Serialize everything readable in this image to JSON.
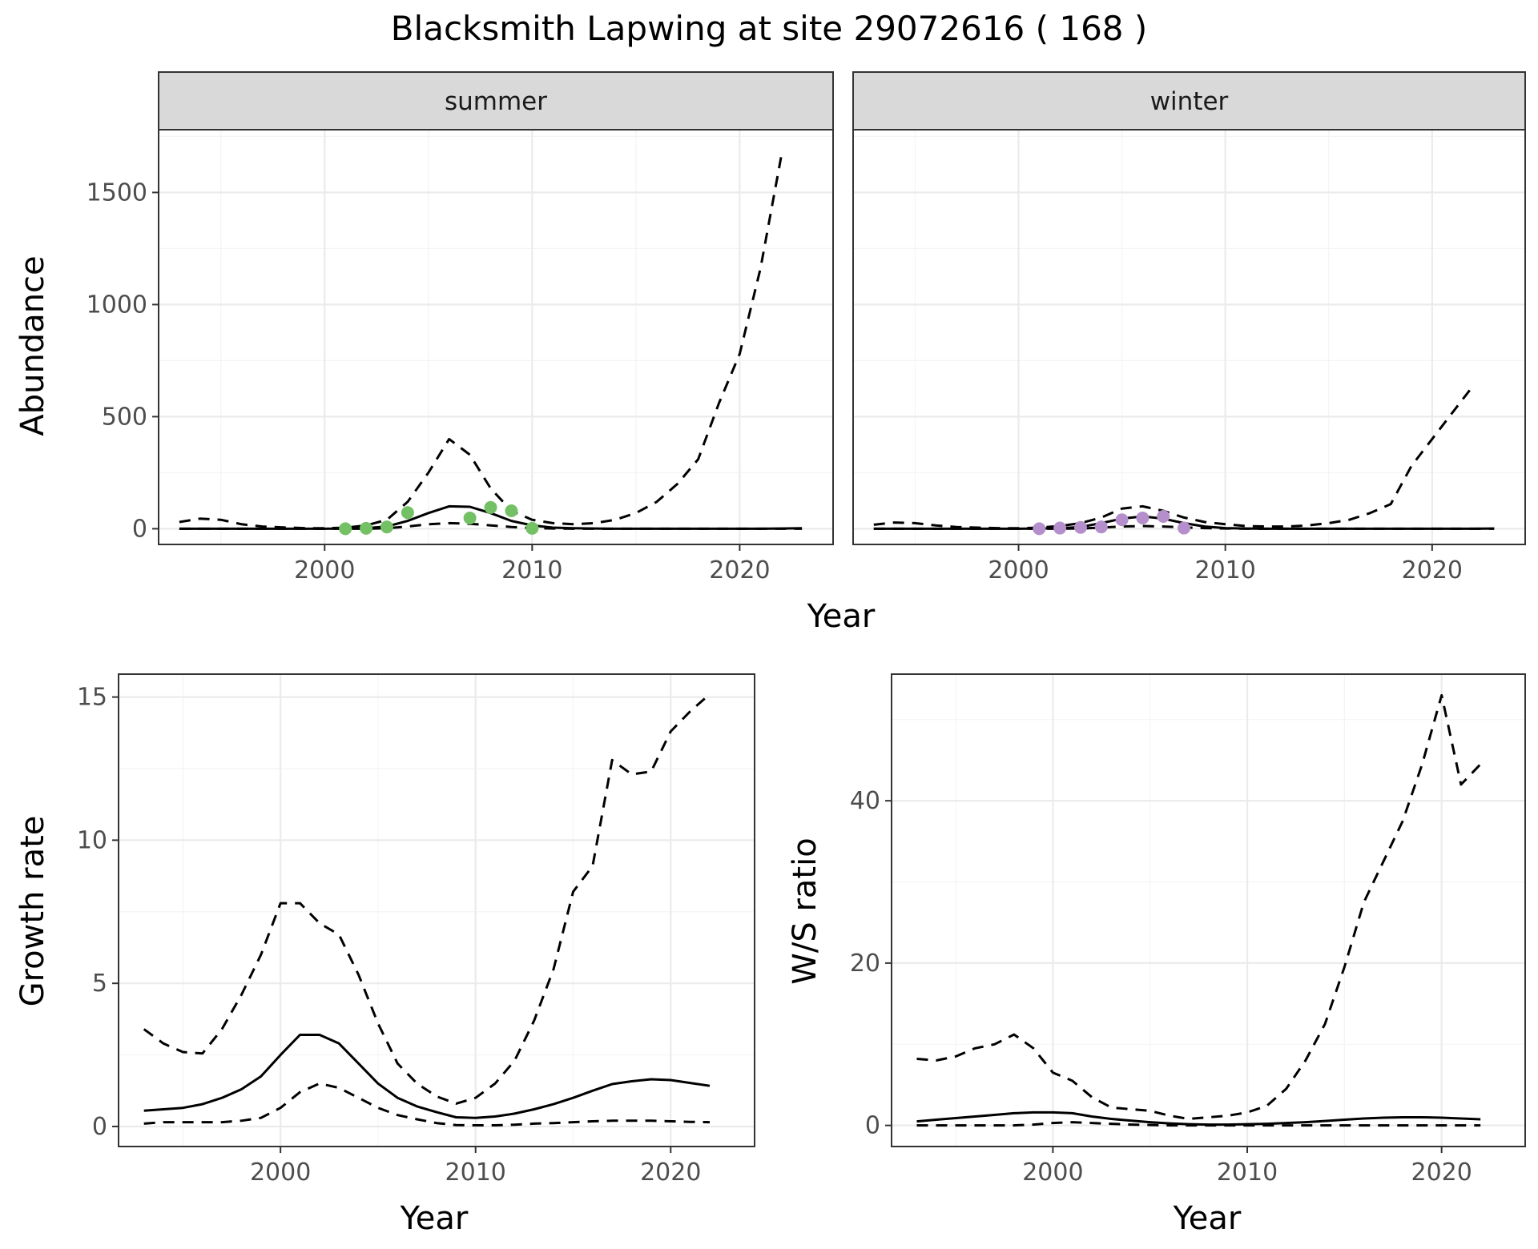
{
  "figure": {
    "title": "Blacksmith Lapwing at site 29072616 ( 168 )"
  },
  "colors": {
    "summer_points": "#74c165",
    "winter_points": "#b48fcb",
    "lines": "#000000",
    "strip_bg": "#d9d9d9"
  },
  "chart_data": [
    {
      "id": "abundance-summer",
      "type": "line",
      "facet": "summer",
      "xlabel": "Year",
      "ylabel": "Abundance",
      "xlim": [
        1992,
        2024.5
      ],
      "ylim": [
        -70,
        1780
      ],
      "xticks": [
        2000,
        2010,
        2020
      ],
      "yticks": [
        0,
        500,
        1000,
        1500
      ],
      "x": [
        1993,
        1994,
        1995,
        1996,
        1997,
        1998,
        1999,
        2000,
        2001,
        2002,
        2003,
        2004,
        2005,
        2006,
        2007,
        2008,
        2009,
        2010,
        2011,
        2012,
        2013,
        2014,
        2015,
        2016,
        2017,
        2018,
        2019,
        2020,
        2021,
        2022,
        2023
      ],
      "series": [
        {
          "name": "estimate",
          "style": "solid",
          "values": [
            0,
            0,
            0,
            0,
            0,
            0,
            0,
            0,
            1,
            3,
            10,
            35,
            70,
            100,
            98,
            70,
            35,
            15,
            5,
            2,
            1,
            0,
            0,
            0,
            0,
            0,
            0,
            0,
            0,
            1,
            2
          ]
        },
        {
          "name": "upper",
          "style": "dashed",
          "values": [
            30,
            45,
            40,
            20,
            10,
            6,
            3,
            2,
            5,
            15,
            40,
            120,
            250,
            400,
            330,
            180,
            80,
            40,
            25,
            20,
            25,
            40,
            70,
            120,
            200,
            310,
            560,
            780,
            1160,
            1660,
            null
          ]
        },
        {
          "name": "lower",
          "style": "dashed",
          "values": [
            0,
            0,
            0,
            0,
            0,
            0,
            0,
            0,
            0,
            0,
            2,
            10,
            20,
            25,
            22,
            15,
            8,
            3,
            1,
            0,
            0,
            0,
            0,
            0,
            0,
            0,
            0,
            0,
            0,
            0,
            0
          ]
        }
      ],
      "points": {
        "x": [
          2001,
          2002,
          2003,
          2004,
          2007,
          2008,
          2009,
          2010
        ],
        "y": [
          0,
          2,
          8,
          72,
          48,
          95,
          80,
          2
        ]
      }
    },
    {
      "id": "abundance-winter",
      "type": "line",
      "facet": "winter",
      "xlabel": "Year",
      "ylabel": "Abundance",
      "xlim": [
        1992,
        2024.5
      ],
      "ylim": [
        -70,
        1780
      ],
      "xticks": [
        2000,
        2010,
        2020
      ],
      "yticks": [
        0,
        500,
        1000,
        1500
      ],
      "x": [
        1993,
        1994,
        1995,
        1996,
        1997,
        1998,
        1999,
        2000,
        2001,
        2002,
        2003,
        2004,
        2005,
        2006,
        2007,
        2008,
        2009,
        2010,
        2011,
        2012,
        2013,
        2014,
        2015,
        2016,
        2017,
        2018,
        2019,
        2020,
        2021,
        2022,
        2023
      ],
      "series": [
        {
          "name": "estimate",
          "style": "solid",
          "values": [
            0,
            0,
            0,
            0,
            0,
            0,
            0,
            0,
            1,
            2,
            8,
            25,
            45,
            55,
            45,
            25,
            10,
            3,
            1,
            0,
            0,
            0,
            0,
            0,
            0,
            0,
            0,
            0,
            0,
            0,
            1
          ]
        },
        {
          "name": "upper",
          "style": "dashed",
          "values": [
            18,
            28,
            25,
            15,
            8,
            5,
            3,
            2,
            5,
            12,
            25,
            50,
            90,
            100,
            80,
            50,
            30,
            20,
            12,
            10,
            10,
            15,
            25,
            40,
            70,
            110,
            280,
            400,
            520,
            640,
            null
          ]
        },
        {
          "name": "lower",
          "style": "dashed",
          "values": [
            0,
            0,
            0,
            0,
            0,
            0,
            0,
            0,
            0,
            0,
            1,
            5,
            10,
            12,
            10,
            6,
            3,
            1,
            0,
            0,
            0,
            0,
            0,
            0,
            0,
            0,
            0,
            0,
            0,
            0,
            0
          ]
        }
      ],
      "points": {
        "x": [
          2001,
          2002,
          2003,
          2004,
          2005,
          2006,
          2007,
          2008
        ],
        "y": [
          0,
          3,
          6,
          8,
          40,
          48,
          55,
          3
        ]
      }
    },
    {
      "id": "growth-rate",
      "type": "line",
      "xlabel": "Year",
      "ylabel": "Growth rate",
      "xlim": [
        1991.7,
        2024.3
      ],
      "ylim": [
        -0.7,
        15.8
      ],
      "xticks": [
        2000,
        2010,
        2020
      ],
      "yticks": [
        0,
        5,
        10,
        15
      ],
      "x": [
        1993,
        1994,
        1995,
        1996,
        1997,
        1998,
        1999,
        2000,
        2001,
        2002,
        2003,
        2004,
        2005,
        2006,
        2007,
        2008,
        2009,
        2010,
        2011,
        2012,
        2013,
        2014,
        2015,
        2016,
        2017,
        2018,
        2019,
        2020,
        2021,
        2022
      ],
      "series": [
        {
          "name": "estimate",
          "style": "solid",
          "values": [
            0.55,
            0.6,
            0.65,
            0.78,
            1.0,
            1.3,
            1.75,
            2.5,
            3.2,
            3.2,
            2.9,
            2.2,
            1.5,
            1.0,
            0.7,
            0.5,
            0.32,
            0.3,
            0.35,
            0.45,
            0.6,
            0.78,
            1.0,
            1.25,
            1.48,
            1.58,
            1.65,
            1.62,
            1.52,
            1.42
          ]
        },
        {
          "name": "upper",
          "style": "dashed",
          "values": [
            3.4,
            2.9,
            2.6,
            2.55,
            3.4,
            4.6,
            6.0,
            7.8,
            7.8,
            7.1,
            6.7,
            5.3,
            3.6,
            2.2,
            1.5,
            1.05,
            0.8,
            1.0,
            1.5,
            2.3,
            3.7,
            5.5,
            8.2,
            9.1,
            12.8,
            12.3,
            12.4,
            13.8,
            14.5,
            15.1
          ]
        },
        {
          "name": "lower",
          "style": "dashed",
          "values": [
            0.1,
            0.15,
            0.15,
            0.15,
            0.15,
            0.2,
            0.3,
            0.65,
            1.2,
            1.5,
            1.35,
            1.0,
            0.65,
            0.4,
            0.25,
            0.12,
            0.05,
            0.04,
            0.04,
            0.06,
            0.1,
            0.12,
            0.15,
            0.18,
            0.2,
            0.2,
            0.2,
            0.18,
            0.16,
            0.15
          ]
        }
      ]
    },
    {
      "id": "ws-ratio",
      "type": "line",
      "xlabel": "Year",
      "ylabel": "W/S ratio",
      "xlim": [
        1991.7,
        2024.3
      ],
      "ylim": [
        -2.6,
        55.6
      ],
      "xticks": [
        2000,
        2010,
        2020
      ],
      "yticks": [
        0,
        20,
        40
      ],
      "x": [
        1993,
        1994,
        1995,
        1996,
        1997,
        1998,
        1999,
        2000,
        2001,
        2002,
        2003,
        2004,
        2005,
        2006,
        2007,
        2008,
        2009,
        2010,
        2011,
        2012,
        2013,
        2014,
        2015,
        2016,
        2017,
        2018,
        2019,
        2020,
        2021,
        2022
      ],
      "series": [
        {
          "name": "estimate",
          "style": "solid",
          "values": [
            0.5,
            0.7,
            0.9,
            1.1,
            1.3,
            1.5,
            1.6,
            1.6,
            1.5,
            1.1,
            0.8,
            0.6,
            0.4,
            0.25,
            0.15,
            0.1,
            0.1,
            0.15,
            0.2,
            0.3,
            0.4,
            0.55,
            0.7,
            0.85,
            0.95,
            1.0,
            1.0,
            0.95,
            0.85,
            0.75
          ]
        },
        {
          "name": "upper",
          "style": "dashed",
          "values": [
            8.2,
            8.0,
            8.5,
            9.5,
            10.0,
            11.2,
            9.5,
            6.5,
            5.5,
            3.5,
            2.2,
            2.0,
            1.8,
            1.2,
            0.8,
            1.0,
            1.2,
            1.6,
            2.4,
            4.5,
            8.0,
            12.5,
            19.5,
            27.5,
            32.5,
            37.5,
            44.5,
            53.0,
            42.0,
            44.5
          ]
        },
        {
          "name": "lower",
          "style": "dashed",
          "values": [
            0,
            0,
            0,
            0,
            0,
            0,
            0.1,
            0.3,
            0.4,
            0.3,
            0.2,
            0.1,
            0.05,
            0,
            0,
            0,
            0,
            0,
            0,
            0,
            0,
            0,
            0,
            0,
            0,
            0,
            0,
            0,
            0,
            0
          ]
        }
      ]
    }
  ]
}
